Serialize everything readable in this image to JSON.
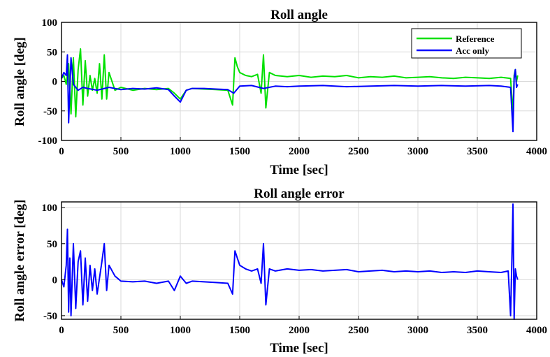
{
  "chart_data": [
    {
      "type": "line",
      "title": "Roll angle",
      "xlabel": "Time [sec]",
      "ylabel": "Roll angle [deg]",
      "xlim": [
        0,
        4000
      ],
      "ylim": [
        -100,
        100
      ],
      "xticks": [
        0,
        500,
        1000,
        1500,
        2000,
        2500,
        3000,
        3500,
        4000
      ],
      "yticks": [
        -100,
        -50,
        0,
        50,
        100
      ],
      "grid": true,
      "legend": "top-right",
      "series": [
        {
          "name": "Reference",
          "color": "#00e000",
          "x": [
            0,
            20,
            40,
            60,
            80,
            100,
            120,
            140,
            160,
            180,
            200,
            220,
            240,
            260,
            280,
            300,
            320,
            340,
            360,
            380,
            400,
            450,
            500,
            600,
            700,
            800,
            900,
            950,
            1000,
            1050,
            1100,
            1200,
            1300,
            1400,
            1440,
            1460,
            1480,
            1500,
            1550,
            1600,
            1650,
            1680,
            1700,
            1720,
            1750,
            1800,
            1900,
            2000,
            2100,
            2200,
            2300,
            2400,
            2500,
            2600,
            2700,
            2800,
            2900,
            3000,
            3100,
            3200,
            3300,
            3400,
            3500,
            3600,
            3700,
            3780,
            3800,
            3810,
            3820,
            3830,
            3840
          ],
          "y": [
            5,
            10,
            -5,
            30,
            -55,
            40,
            -60,
            20,
            55,
            -40,
            35,
            -25,
            10,
            -15,
            5,
            -20,
            30,
            -30,
            45,
            -30,
            15,
            -15,
            -10,
            -15,
            -12,
            -14,
            -12,
            -20,
            -30,
            -15,
            -12,
            -13,
            -14,
            -15,
            -40,
            40,
            25,
            15,
            10,
            8,
            12,
            -20,
            45,
            -45,
            15,
            10,
            8,
            10,
            7,
            9,
            8,
            10,
            6,
            8,
            7,
            9,
            6,
            7,
            8,
            6,
            5,
            7,
            6,
            5,
            7,
            5,
            -55,
            10,
            20,
            0,
            10
          ]
        },
        {
          "name": "Acc only",
          "color": "#0000ff",
          "x": [
            0,
            20,
            40,
            50,
            60,
            80,
            100,
            140,
            180,
            220,
            300,
            400,
            500,
            600,
            700,
            800,
            900,
            950,
            1000,
            1050,
            1100,
            1200,
            1300,
            1400,
            1450,
            1500,
            1600,
            1700,
            1800,
            1900,
            2000,
            2200,
            2400,
            2600,
            2800,
            3000,
            3200,
            3400,
            3600,
            3700,
            3780,
            3800,
            3810,
            3820,
            3830,
            3840
          ],
          "y": [
            5,
            15,
            10,
            45,
            -70,
            40,
            -5,
            -15,
            -10,
            -12,
            -15,
            -10,
            -14,
            -12,
            -13,
            -11,
            -14,
            -25,
            -35,
            -15,
            -12,
            -12,
            -13,
            -14,
            -20,
            -8,
            -7,
            -12,
            -8,
            -9,
            -8,
            -7,
            -9,
            -8,
            -7,
            -8,
            -7,
            -8,
            -7,
            -8,
            -10,
            -85,
            5,
            20,
            -10,
            -5
          ]
        }
      ]
    },
    {
      "type": "line",
      "title": "Roll angle error",
      "xlabel": "Time [sec]",
      "ylabel": "Roll angle error [deg]",
      "xlim": [
        0,
        4000
      ],
      "ylim": [
        -55,
        108
      ],
      "xticks": [
        0,
        500,
        1000,
        1500,
        2000,
        2500,
        3000,
        3500,
        4000
      ],
      "yticks": [
        -50,
        0,
        50,
        100
      ],
      "grid": true,
      "series": [
        {
          "color": "#0000ff",
          "x": [
            0,
            20,
            40,
            50,
            60,
            70,
            80,
            100,
            120,
            140,
            160,
            180,
            200,
            220,
            240,
            260,
            280,
            300,
            340,
            360,
            380,
            400,
            450,
            500,
            600,
            700,
            800,
            900,
            950,
            1000,
            1050,
            1100,
            1200,
            1300,
            1400,
            1440,
            1460,
            1480,
            1500,
            1550,
            1600,
            1650,
            1680,
            1700,
            1720,
            1750,
            1800,
            1900,
            2000,
            2100,
            2200,
            2300,
            2400,
            2500,
            2600,
            2700,
            2800,
            2900,
            3000,
            3100,
            3200,
            3300,
            3400,
            3500,
            3600,
            3700,
            3760,
            3780,
            3790,
            3800,
            3810,
            3820,
            3830,
            3840
          ],
          "y": [
            0,
            -10,
            20,
            70,
            -45,
            30,
            -50,
            50,
            -40,
            25,
            40,
            -35,
            30,
            -30,
            20,
            -15,
            15,
            -20,
            25,
            50,
            -15,
            20,
            5,
            -2,
            -3,
            -2,
            -5,
            -2,
            -15,
            5,
            -5,
            -2,
            -3,
            -4,
            -5,
            -20,
            40,
            30,
            20,
            15,
            12,
            15,
            -5,
            50,
            -35,
            15,
            12,
            15,
            13,
            14,
            12,
            13,
            14,
            11,
            12,
            13,
            11,
            12,
            11,
            12,
            10,
            11,
            10,
            12,
            11,
            10,
            12,
            -50,
            20,
            105,
            -55,
            15,
            5,
            0
          ]
        }
      ]
    }
  ]
}
